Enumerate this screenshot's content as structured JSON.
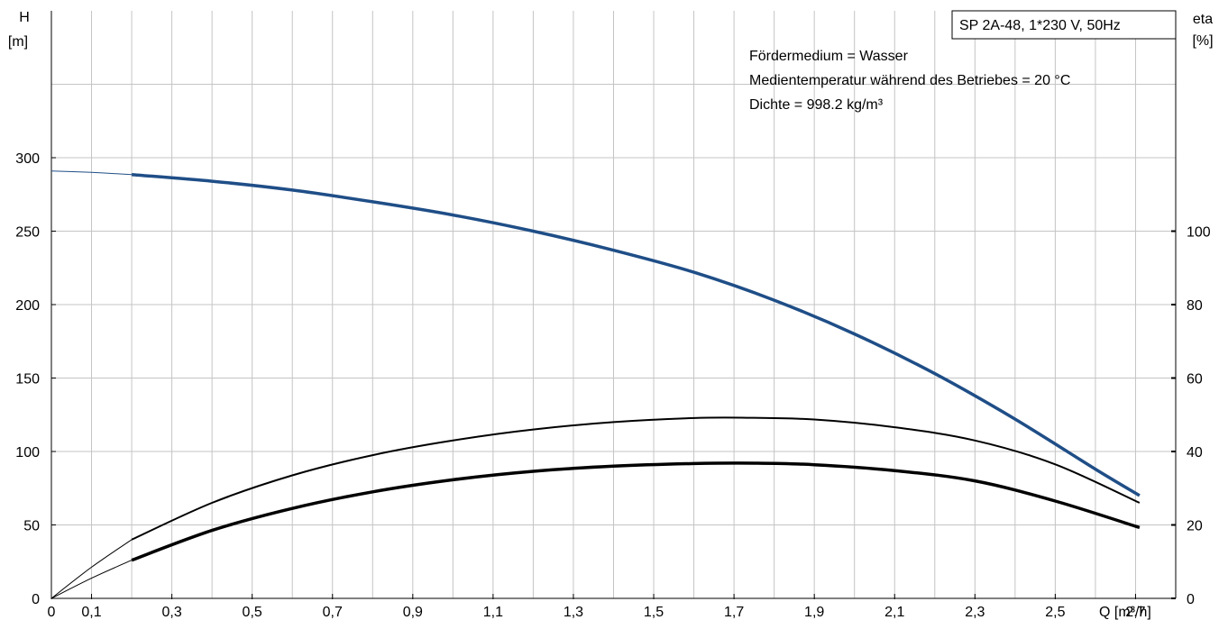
{
  "chart_data": {
    "type": "line",
    "title": "SP 2A-48, 1*230 V, 50Hz",
    "annotations": [
      "Fördermedium = Wasser",
      "Medientemperatur während des Betriebes = 20 °C",
      "Dichte = 998.2 kg/m³"
    ],
    "x_axis": {
      "label": "Q [m³/h]",
      "range": [
        0,
        2.8
      ],
      "tick_values": [
        0,
        0.1,
        0.3,
        0.5,
        0.7,
        0.9,
        1.1,
        1.3,
        1.5,
        1.7,
        1.9,
        2.1,
        2.3,
        2.5,
        2.7
      ],
      "tick_labels": [
        "0",
        "0,1",
        "0,3",
        "0,5",
        "0,7",
        "0,9",
        "1,1",
        "1,3",
        "1,5",
        "1,7",
        "1,9",
        "2,1",
        "2,3",
        "2,5",
        "2,7"
      ]
    },
    "y_axis_left": {
      "label_line1": "H",
      "label_line2": "[m]",
      "range": [
        0,
        400
      ],
      "tick_values": [
        0,
        50,
        100,
        150,
        200,
        250,
        300
      ],
      "tick_labels": [
        "0",
        "50",
        "100",
        "150",
        "200",
        "250",
        "300"
      ]
    },
    "y_axis_right": {
      "label_line1": "eta",
      "label_line2": "[%]",
      "range": [
        0,
        160
      ],
      "tick_values": [
        0,
        20,
        40,
        60,
        80,
        100
      ],
      "tick_labels": [
        "0",
        "20",
        "40",
        "60",
        "80",
        "100"
      ]
    },
    "grid": true,
    "series": [
      {
        "axis": "left",
        "color": "#1f4e87",
        "x_start": 0.2,
        "x_end": 2.71,
        "points": [
          [
            0,
            291
          ],
          [
            0.1,
            290
          ],
          [
            0.2,
            288.5
          ],
          [
            0.4,
            284
          ],
          [
            0.6,
            278
          ],
          [
            0.8,
            270
          ],
          [
            1.0,
            261
          ],
          [
            1.2,
            250
          ],
          [
            1.4,
            237
          ],
          [
            1.6,
            222
          ],
          [
            1.8,
            203
          ],
          [
            2.0,
            180
          ],
          [
            2.2,
            153
          ],
          [
            2.4,
            122
          ],
          [
            2.6,
            88
          ],
          [
            2.71,
            70
          ]
        ]
      },
      {
        "axis": "right",
        "color": "#000000",
        "x_start": 0.2,
        "x_end": 2.71,
        "points": [
          [
            0,
            0
          ],
          [
            0.1,
            8.5
          ],
          [
            0.2,
            16
          ],
          [
            0.4,
            26
          ],
          [
            0.6,
            33.5
          ],
          [
            0.8,
            39
          ],
          [
            1.0,
            43
          ],
          [
            1.2,
            46
          ],
          [
            1.4,
            48
          ],
          [
            1.6,
            49.1
          ],
          [
            1.72,
            49.2
          ],
          [
            1.9,
            48.7
          ],
          [
            2.1,
            46.6
          ],
          [
            2.3,
            43
          ],
          [
            2.5,
            36.5
          ],
          [
            2.71,
            26
          ]
        ]
      },
      {
        "axis": "right",
        "color": "#000000",
        "x_start": 0.2,
        "x_end": 2.71,
        "points": [
          [
            0,
            0
          ],
          [
            0.1,
            5.5
          ],
          [
            0.2,
            10.4
          ],
          [
            0.4,
            18.5
          ],
          [
            0.6,
            24.5
          ],
          [
            0.8,
            29
          ],
          [
            1.0,
            32.3
          ],
          [
            1.2,
            34.6
          ],
          [
            1.4,
            36
          ],
          [
            1.6,
            36.7
          ],
          [
            1.75,
            36.8
          ],
          [
            1.9,
            36.4
          ],
          [
            2.1,
            34.8
          ],
          [
            2.3,
            32
          ],
          [
            2.5,
            26.5
          ],
          [
            2.71,
            19.3
          ]
        ]
      }
    ]
  }
}
